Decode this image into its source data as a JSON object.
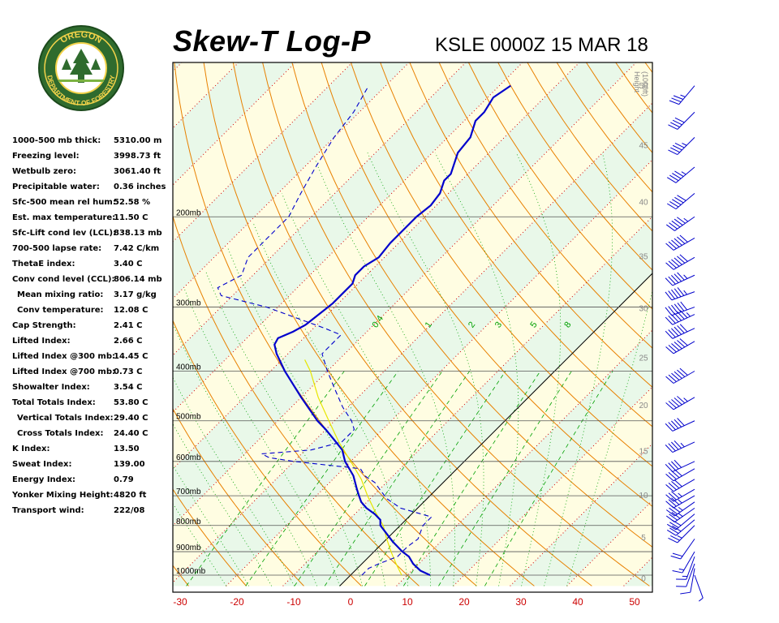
{
  "header": {
    "title": "Skew-T Log-P",
    "station_time": "KSLE 0000Z 15 MAR 18"
  },
  "logo": {
    "text_top": "OREGON",
    "text_bottom": "DEPARTMENT OF FORESTRY"
  },
  "stats": [
    {
      "label": "1000-500 mb thick:",
      "value": "5310.00 m",
      "indent": false
    },
    {
      "label": "Freezing level:",
      "value": "3998.73 ft",
      "indent": false
    },
    {
      "label": "Wetbulb zero:",
      "value": "3061.40 ft",
      "indent": false
    },
    {
      "label": "Precipitable water:",
      "value": "0.36 inches",
      "indent": false
    },
    {
      "label": "Sfc-500 mean rel hum:",
      "value": "52.58 %",
      "indent": false
    },
    {
      "label": "Est. max temperature:",
      "value": "11.50 C",
      "indent": false
    },
    {
      "label": "Sfc-Lift cond lev (LCL):",
      "value": "838.13 mb",
      "indent": false
    },
    {
      "label": "700-500 lapse rate:",
      "value": "7.42 C/km",
      "indent": false
    },
    {
      "label": "ThetaE index:",
      "value": "3.40 C",
      "indent": false
    },
    {
      "label": "Conv cond level (CCL):",
      "value": "806.14 mb",
      "indent": false
    },
    {
      "label": "Mean mixing ratio:",
      "value": "3.17 g/kg",
      "indent": true
    },
    {
      "label": "Conv temperature:",
      "value": "12.08 C",
      "indent": true
    },
    {
      "label": "Cap Strength:",
      "value": "2.41 C",
      "indent": false
    },
    {
      "label": "Lifted Index:",
      "value": "2.66 C",
      "indent": false
    },
    {
      "label": "Lifted Index @300 mb:",
      "value": "14.45 C",
      "indent": false
    },
    {
      "label": "Lifted Index @700 mb:",
      "value": "0.73 C",
      "indent": false
    },
    {
      "label": "Showalter Index:",
      "value": "3.54 C",
      "indent": false
    },
    {
      "label": "Total Totals Index:",
      "value": "53.80 C",
      "indent": false
    },
    {
      "label": "Vertical Totals Index:",
      "value": "29.40 C",
      "indent": true
    },
    {
      "label": "Cross Totals Index:",
      "value": "24.40 C",
      "indent": true
    },
    {
      "label": "K Index:",
      "value": "13.50",
      "indent": false
    },
    {
      "label": "Sweat Index:",
      "value": "139.00",
      "indent": false
    },
    {
      "label": "Energy Index:",
      "value": "0.79",
      "indent": false
    },
    {
      "label": "Yonker Mixing Height:",
      "value": "4820 ft",
      "indent": false
    },
    {
      "label": "Transport wind:",
      "value": "222/08",
      "indent": false
    }
  ],
  "chart_data": {
    "type": "line",
    "title": "Skew-T Log-P",
    "xlabel": "",
    "ylabel": "",
    "x_ticks": [
      "-30",
      "-20",
      "-10",
      "0",
      "10",
      "20",
      "30",
      "40",
      "50"
    ],
    "pressure_levels": [
      {
        "p": 200,
        "label": "200mb"
      },
      {
        "p": 300,
        "label": "300mb"
      },
      {
        "p": 400,
        "label": "400mb"
      },
      {
        "p": 500,
        "label": "500mb"
      },
      {
        "p": 600,
        "label": "600mb"
      },
      {
        "p": 700,
        "label": "700mb"
      },
      {
        "p": 800,
        "label": "800mb"
      },
      {
        "p": 900,
        "label": "900mb"
      },
      {
        "p": 1000,
        "label": "1000mb"
      }
    ],
    "height_axis_label": [
      "Height",
      "(1000ft)"
    ],
    "height_ticks": [
      0,
      5,
      10,
      15,
      20,
      25,
      30,
      35,
      40,
      45,
      50
    ],
    "mixing_ratio_labels": [
      "0.4",
      "1",
      "2",
      "3",
      "5",
      "8"
    ],
    "temperature_profile": [
      {
        "p": 1000,
        "t": 14.0
      },
      {
        "p": 980,
        "t": 11.5
      },
      {
        "p": 950,
        "t": 9.0
      },
      {
        "p": 920,
        "t": 7.0
      },
      {
        "p": 900,
        "t": 5.0
      },
      {
        "p": 860,
        "t": 1.5
      },
      {
        "p": 800,
        "t": -3.5
      },
      {
        "p": 780,
        "t": -4.5
      },
      {
        "p": 760,
        "t": -6.5
      },
      {
        "p": 740,
        "t": -9.0
      },
      {
        "p": 720,
        "t": -11.0
      },
      {
        "p": 700,
        "t": -12.5
      },
      {
        "p": 680,
        "t": -14.0
      },
      {
        "p": 640,
        "t": -17.0
      },
      {
        "p": 600,
        "t": -21.0
      },
      {
        "p": 570,
        "t": -23.5
      },
      {
        "p": 550,
        "t": -26.0
      },
      {
        "p": 520,
        "t": -30.0
      },
      {
        "p": 500,
        "t": -33.0
      },
      {
        "p": 450,
        "t": -40.0
      },
      {
        "p": 400,
        "t": -47.5
      },
      {
        "p": 370,
        "t": -52.0
      },
      {
        "p": 355,
        "t": -54.0
      },
      {
        "p": 345,
        "t": -54.5
      },
      {
        "p": 335,
        "t": -53.0
      },
      {
        "p": 325,
        "t": -52.0
      },
      {
        "p": 310,
        "t": -51.5
      },
      {
        "p": 295,
        "t": -51.0
      },
      {
        "p": 285,
        "t": -51.0
      },
      {
        "p": 270,
        "t": -51.0
      },
      {
        "p": 260,
        "t": -52.0
      },
      {
        "p": 250,
        "t": -52.0
      },
      {
        "p": 240,
        "t": -51.0
      },
      {
        "p": 225,
        "t": -51.5
      },
      {
        "p": 210,
        "t": -51.5
      },
      {
        "p": 200,
        "t": -51.5
      },
      {
        "p": 190,
        "t": -51.0
      },
      {
        "p": 180,
        "t": -51.5
      },
      {
        "p": 170,
        "t": -53.0
      },
      {
        "p": 165,
        "t": -53.0
      },
      {
        "p": 150,
        "t": -55.5
      },
      {
        "p": 140,
        "t": -56.0
      },
      {
        "p": 130,
        "t": -58.0
      },
      {
        "p": 125,
        "t": -58.0
      },
      {
        "p": 117,
        "t": -59.0
      },
      {
        "p": 111,
        "t": -58.0
      }
    ],
    "dewpoint_profile": [
      {
        "p": 1000,
        "t": 2.0
      },
      {
        "p": 970,
        "t": 2.0
      },
      {
        "p": 950,
        "t": 3.0
      },
      {
        "p": 920,
        "t": 5.0
      },
      {
        "p": 880,
        "t": 5.0
      },
      {
        "p": 850,
        "t": 5.5
      },
      {
        "p": 800,
        "t": 4.0
      },
      {
        "p": 770,
        "t": 4.0
      },
      {
        "p": 740,
        "t": -3.0
      },
      {
        "p": 710,
        "t": -7.0
      },
      {
        "p": 680,
        "t": -10.0
      },
      {
        "p": 660,
        "t": -12.0
      },
      {
        "p": 640,
        "t": -15.0
      },
      {
        "p": 620,
        "t": -17.0
      },
      {
        "p": 600,
        "t": -30.0
      },
      {
        "p": 590,
        "t": -35.0
      },
      {
        "p": 580,
        "t": -37.0
      },
      {
        "p": 570,
        "t": -29.0
      },
      {
        "p": 550,
        "t": -25.0
      },
      {
        "p": 520,
        "t": -25.0
      },
      {
        "p": 500,
        "t": -27.0
      },
      {
        "p": 470,
        "t": -31.0
      },
      {
        "p": 430,
        "t": -36.0
      },
      {
        "p": 400,
        "t": -40.0
      },
      {
        "p": 370,
        "t": -44.0
      },
      {
        "p": 340,
        "t": -44.0
      },
      {
        "p": 330,
        "t": -48.0
      },
      {
        "p": 300,
        "t": -62.0
      },
      {
        "p": 285,
        "t": -72.0
      },
      {
        "p": 275,
        "t": -74.0
      },
      {
        "p": 260,
        "t": -72.0
      },
      {
        "p": 240,
        "t": -74.0
      },
      {
        "p": 220,
        "t": -74.0
      },
      {
        "p": 200,
        "t": -74.0
      },
      {
        "p": 180,
        "t": -76.0
      },
      {
        "p": 160,
        "t": -78.0
      },
      {
        "p": 140,
        "t": -80.0
      },
      {
        "p": 125,
        "t": -81.0
      },
      {
        "p": 111,
        "t": -83.0
      }
    ],
    "parcel_profile": [
      {
        "p": 1000,
        "t": 9.0
      },
      {
        "p": 950,
        "t": 6.0
      },
      {
        "p": 900,
        "t": 3.0
      },
      {
        "p": 850,
        "t": 0.0
      },
      {
        "p": 800,
        "t": -3.0
      },
      {
        "p": 750,
        "t": -7.0
      },
      {
        "p": 700,
        "t": -11.0
      },
      {
        "p": 650,
        "t": -15.0
      },
      {
        "p": 600,
        "t": -20.0
      },
      {
        "p": 550,
        "t": -25.5
      },
      {
        "p": 500,
        "t": -31.0
      },
      {
        "p": 450,
        "t": -37.0
      },
      {
        "p": 400,
        "t": -43.0
      },
      {
        "p": 380,
        "t": -46.0
      }
    ],
    "colors": {
      "temperature": "#0000cc",
      "dewpoint": "#0000cc",
      "parcel": "#e6e600",
      "isotherm_zero": "#000000",
      "dry_adiabat": "#e88000",
      "moist_adiabat": "#00a000",
      "isotherm": "#d20000",
      "mixing_ratio": "#00a000",
      "band_yellow": "#fffde2",
      "band_green": "#e9f8e9",
      "isobar": "#555555",
      "wind_barb": "#0000cc"
    },
    "wind_barbs": [
      {
        "p": 1000,
        "dir": 160,
        "spd": 5
      },
      {
        "p": 970,
        "dir": 190,
        "spd": 10
      },
      {
        "p": 950,
        "dir": 200,
        "spd": 10
      },
      {
        "p": 920,
        "dir": 200,
        "spd": 15
      },
      {
        "p": 900,
        "dir": 210,
        "spd": 15
      },
      {
        "p": 850,
        "dir": 215,
        "spd": 20
      },
      {
        "p": 800,
        "dir": 225,
        "spd": 25
      },
      {
        "p": 780,
        "dir": 230,
        "spd": 30
      },
      {
        "p": 760,
        "dir": 230,
        "spd": 30
      },
      {
        "p": 740,
        "dir": 235,
        "spd": 35
      },
      {
        "p": 720,
        "dir": 235,
        "spd": 35
      },
      {
        "p": 700,
        "dir": 240,
        "spd": 35
      },
      {
        "p": 680,
        "dir": 240,
        "spd": 35
      },
      {
        "p": 650,
        "dir": 240,
        "spd": 40
      },
      {
        "p": 620,
        "dir": 240,
        "spd": 40
      },
      {
        "p": 600,
        "dir": 245,
        "spd": 40
      },
      {
        "p": 550,
        "dir": 245,
        "spd": 45
      },
      {
        "p": 500,
        "dir": 245,
        "spd": 50
      },
      {
        "p": 450,
        "dir": 240,
        "spd": 55
      },
      {
        "p": 400,
        "dir": 240,
        "spd": 60
      },
      {
        "p": 350,
        "dir": 240,
        "spd": 60
      },
      {
        "p": 330,
        "dir": 245,
        "spd": 60
      },
      {
        "p": 310,
        "dir": 245,
        "spd": 65
      },
      {
        "p": 300,
        "dir": 250,
        "spd": 60
      },
      {
        "p": 280,
        "dir": 250,
        "spd": 55
      },
      {
        "p": 260,
        "dir": 245,
        "spd": 55
      },
      {
        "p": 240,
        "dir": 240,
        "spd": 60
      },
      {
        "p": 220,
        "dir": 240,
        "spd": 60
      },
      {
        "p": 200,
        "dir": 235,
        "spd": 55
      },
      {
        "p": 180,
        "dir": 230,
        "spd": 50
      },
      {
        "p": 160,
        "dir": 230,
        "spd": 45
      },
      {
        "p": 140,
        "dir": 225,
        "spd": 45
      },
      {
        "p": 125,
        "dir": 225,
        "spd": 40
      },
      {
        "p": 111,
        "dir": 220,
        "spd": 35
      }
    ]
  }
}
